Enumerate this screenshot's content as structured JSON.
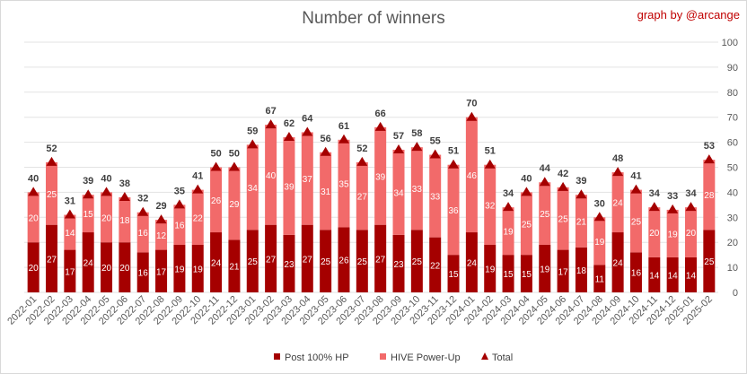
{
  "chart_data": {
    "type": "bar",
    "title": "Number of winners",
    "credit": "graph by @arcange",
    "categories": [
      "2022-01",
      "2022-02",
      "2022-03",
      "2022-04",
      "2022-05",
      "2022-06",
      "2022-07",
      "2022-08",
      "2022-09",
      "2022-10",
      "2022-11",
      "2022-12",
      "2023-01",
      "2023-02",
      "2023-03",
      "2023-04",
      "2023-05",
      "2023-06",
      "2023-07",
      "2023-08",
      "2023-09",
      "2023-10",
      "2023-11",
      "2023-12",
      "2024-01",
      "2024-02",
      "2024-03",
      "2024-04",
      "2024-05",
      "2024-06",
      "2024-07",
      "2024-08",
      "2024-09",
      "2024-10",
      "2024-11",
      "2024-12",
      "2025-01",
      "2025-02"
    ],
    "series": [
      {
        "name": "Post 100% HP",
        "color": "#a50000",
        "values": [
          20,
          27,
          17,
          24,
          20,
          20,
          16,
          17,
          19,
          19,
          24,
          21,
          25,
          27,
          23,
          27,
          25,
          26,
          25,
          27,
          23,
          25,
          22,
          15,
          24,
          19,
          15,
          15,
          19,
          17,
          18,
          11,
          24,
          16,
          14,
          14,
          14,
          25
        ]
      },
      {
        "name": "HIVE Power-Up",
        "color": "#f26a6a",
        "values": [
          20,
          25,
          14,
          15,
          20,
          18,
          16,
          12,
          16,
          22,
          26,
          29,
          34,
          40,
          39,
          37,
          31,
          35,
          27,
          39,
          34,
          33,
          33,
          36,
          46,
          32,
          19,
          25,
          25,
          25,
          21,
          19,
          24,
          25,
          20,
          19,
          20,
          28
        ]
      },
      {
        "name": "Total",
        "color": "#a50000",
        "values": [
          40,
          52,
          31,
          39,
          40,
          38,
          32,
          29,
          35,
          41,
          50,
          50,
          59,
          67,
          62,
          64,
          56,
          61,
          52,
          66,
          57,
          58,
          55,
          51,
          70,
          51,
          34,
          40,
          44,
          42,
          39,
          30,
          48,
          41,
          34,
          33,
          34,
          53
        ]
      }
    ],
    "ylim": [
      0,
      100
    ],
    "yticks": [
      0,
      10,
      20,
      30,
      40,
      50,
      60,
      70,
      80,
      90,
      100
    ],
    "y_axis_side": "right",
    "grid": true,
    "legend": "bottom",
    "stacked": true
  }
}
